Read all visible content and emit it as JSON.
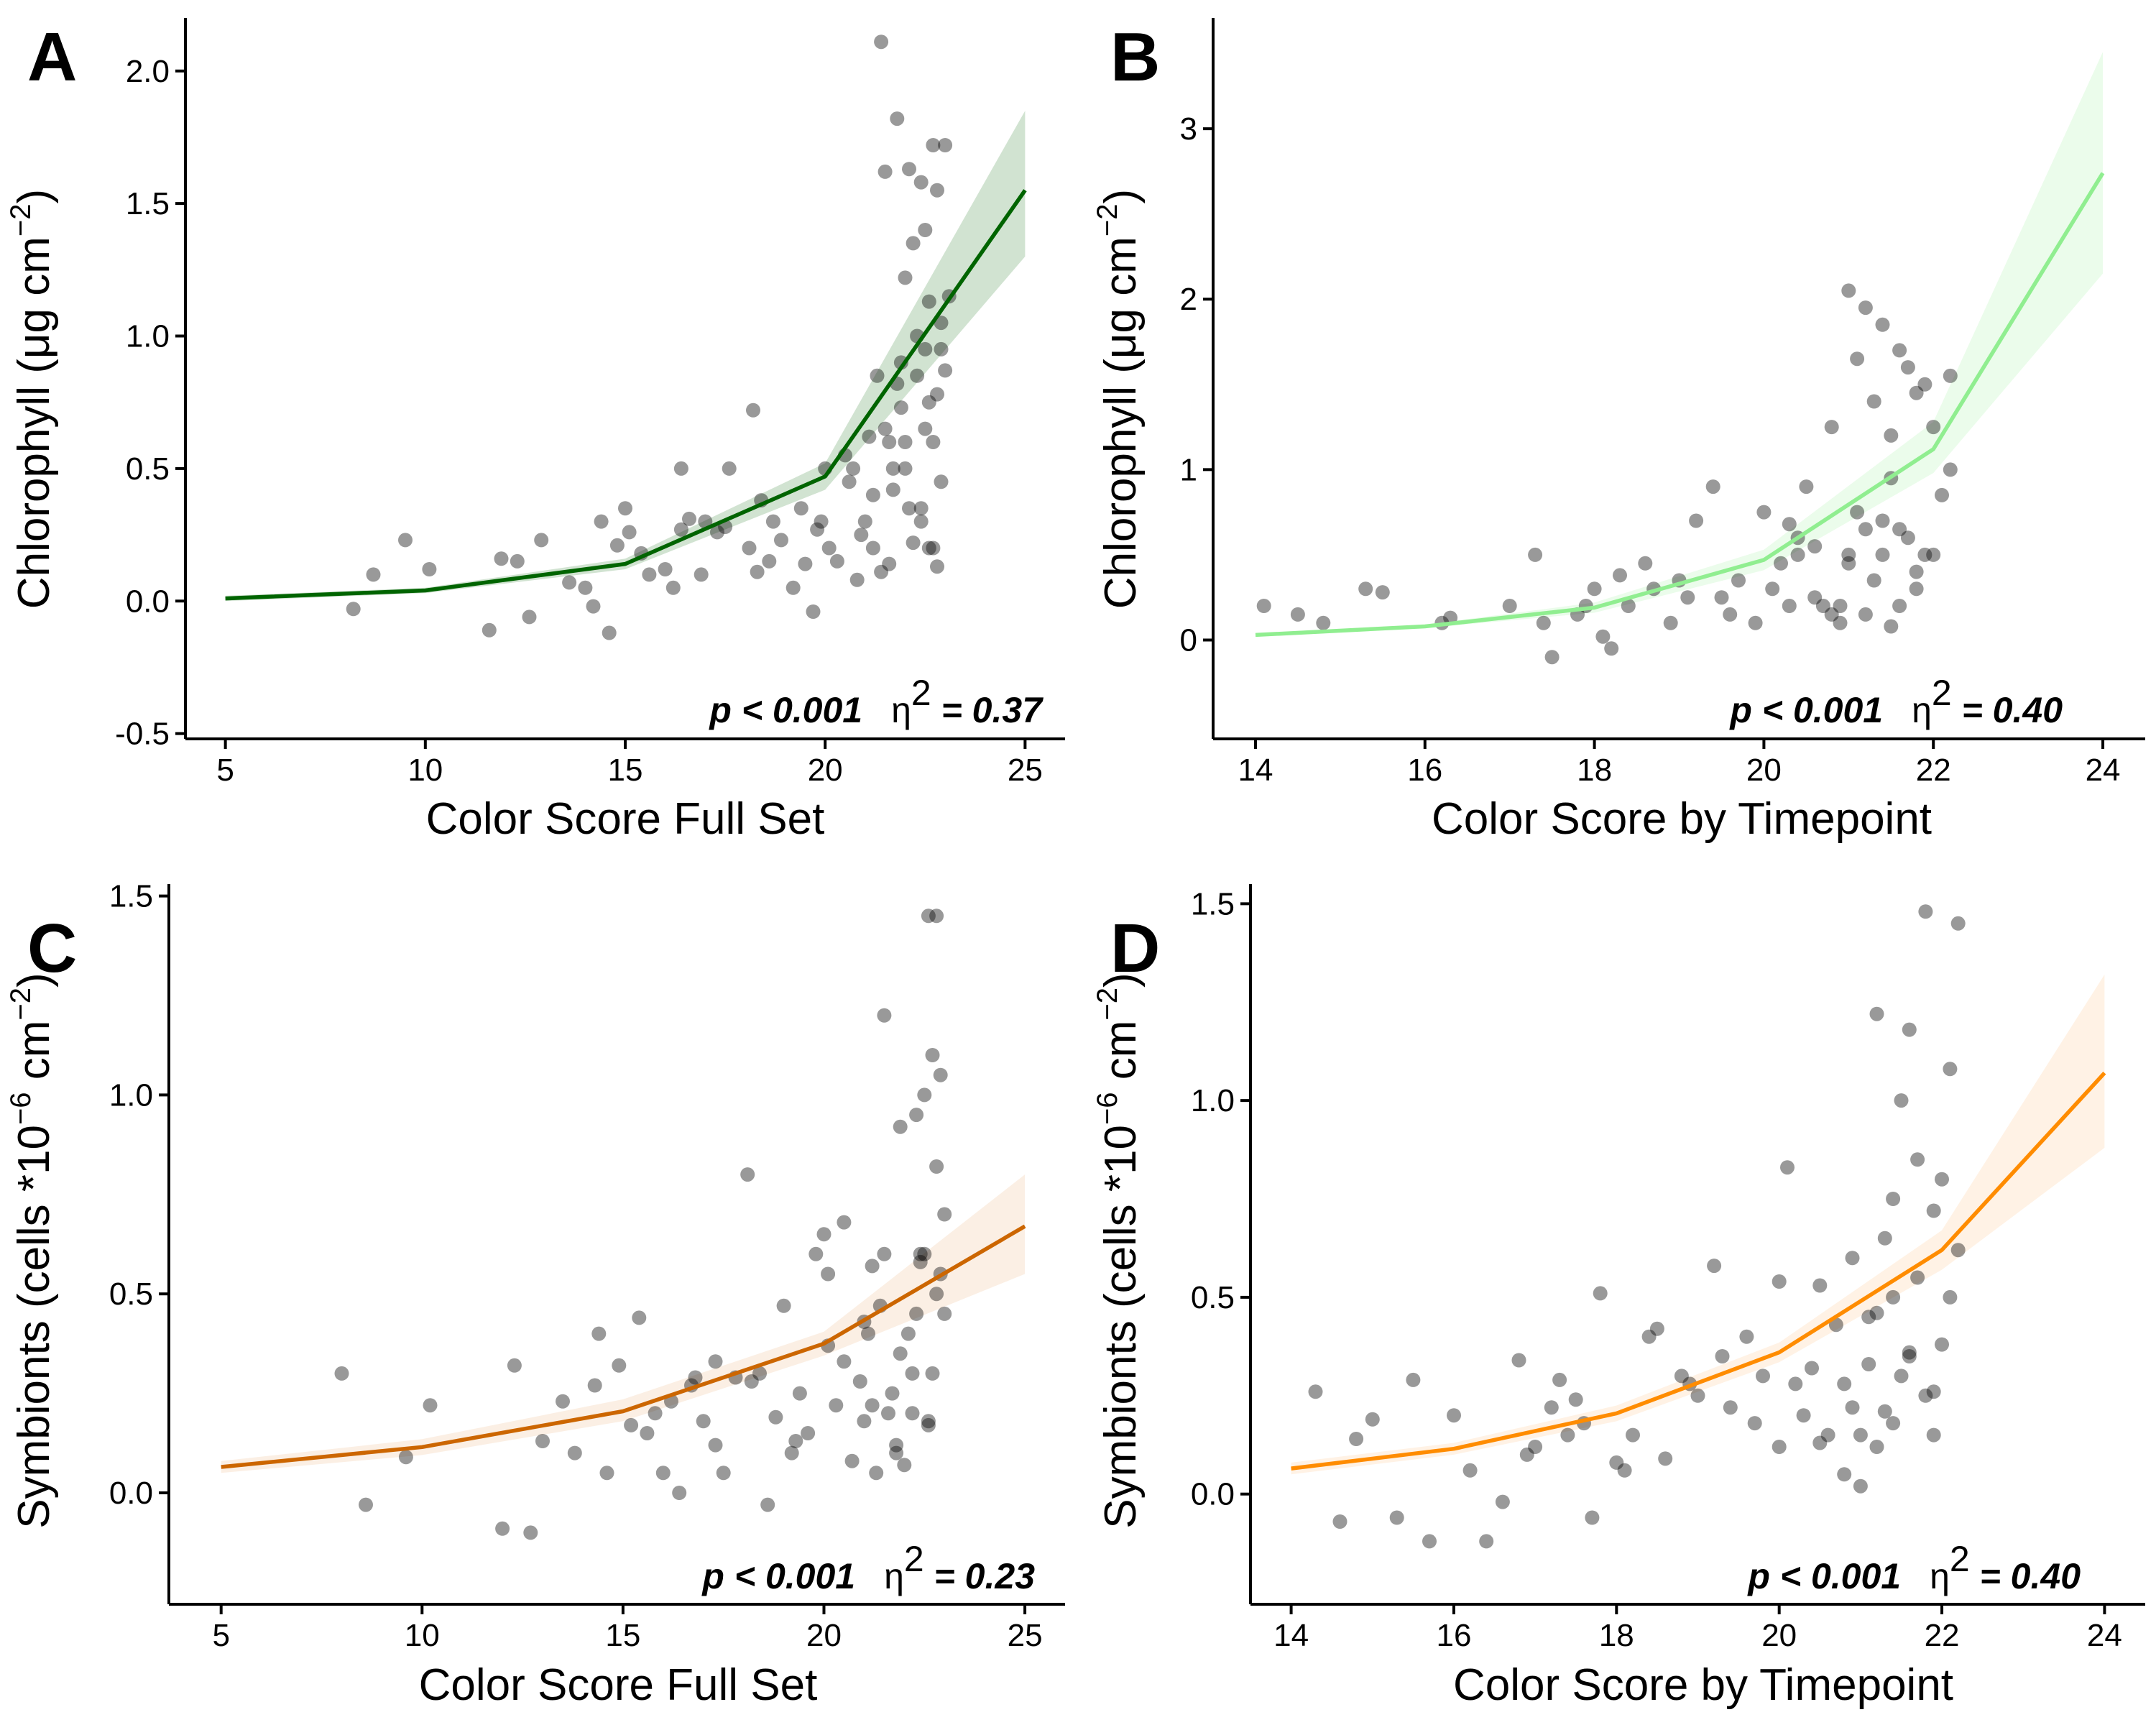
{
  "figure": {
    "panels": [
      {
        "letter": "A",
        "xlabel": "Color Score Full Set",
        "ylabel": "Chlorophyll (μg cm",
        "ylabel_sup": "−2",
        "ylabel_tail": ")",
        "p_text": "p < 0.001",
        "eta_text": "η",
        "eta_sup": "2",
        "eta_val": " = 0.37"
      },
      {
        "letter": "B",
        "xlabel": "Color Score by Timepoint",
        "ylabel": "Chlorophyll (μg cm",
        "ylabel_sup": "−2",
        "ylabel_tail": ")",
        "p_text": "p < 0.001",
        "eta_text": "η",
        "eta_sup": "2",
        "eta_val": " = 0.40"
      },
      {
        "letter": "C",
        "xlabel": "Color Score Full Set",
        "ylabel": "Symbionts (cells *10",
        "ylabel_sup": "−6",
        "ylabel_mid": " cm",
        "ylabel_sup2": "−2",
        "ylabel_tail": ")",
        "p_text": "p < 0.001",
        "eta_text": "η",
        "eta_sup": "2",
        "eta_val": " = 0.23"
      },
      {
        "letter": "D",
        "xlabel": "Color Score by Timepoint",
        "ylabel": "Symbionts (cells *10",
        "ylabel_sup": "−6",
        "ylabel_mid": " cm",
        "ylabel_sup2": "−2",
        "ylabel_tail": ")",
        "p_text": "p < 0.001",
        "eta_text": "η",
        "eta_sup": "2",
        "eta_val": " = 0.40"
      }
    ]
  },
  "chart_data": [
    {
      "type": "scatter",
      "panel": "A",
      "xlabel": "Color Score Full Set",
      "ylabel": "Chlorophyll (μg cm−2)",
      "xlim": [
        4,
        26
      ],
      "ylim": [
        -0.52,
        2.2
      ],
      "xticks": [
        5,
        10,
        15,
        20,
        25
      ],
      "yticks": [
        -0.5,
        0.0,
        0.5,
        1.0,
        1.5,
        2.0
      ],
      "ytick_labels": [
        "-0.5",
        "0.0",
        "0.5",
        "1.0",
        "1.5",
        "2.0"
      ],
      "fit_color": "#006400",
      "ribbon_color": "#006400",
      "fit_line": {
        "x": [
          5,
          10,
          15,
          20,
          25
        ],
        "y": [
          0.01,
          0.04,
          0.14,
          0.47,
          1.55
        ],
        "lower": [
          0.0,
          0.03,
          0.12,
          0.42,
          1.3
        ],
        "upper": [
          0.02,
          0.05,
          0.16,
          0.52,
          1.85
        ]
      },
      "points": {
        "x": [
          8.2,
          8.7,
          9.5,
          10.1,
          11.6,
          11.9,
          12.3,
          12.6,
          12.9,
          13.6,
          14.0,
          14.2,
          14.4,
          14.6,
          14.8,
          15.0,
          15.1,
          15.4,
          15.6,
          16.0,
          16.2,
          16.4,
          16.6,
          16.9,
          17.3,
          17.5,
          17.6,
          18.1,
          18.3,
          18.4,
          18.6,
          18.7,
          18.9,
          19.2,
          19.4,
          19.5,
          19.7,
          19.9,
          20.0,
          20.1,
          20.3,
          20.5,
          20.7,
          20.8,
          20.9,
          21.0,
          21.1,
          21.2,
          21.3,
          21.4,
          21.5,
          21.6,
          21.7,
          21.8,
          21.9,
          22.0,
          22.1,
          22.2,
          22.3,
          22.4,
          22.5,
          22.6,
          22.7,
          22.8,
          22.9,
          23.0,
          21.4,
          21.8,
          22.1,
          22.4,
          22.7,
          23.0,
          22.2,
          22.5,
          22.8,
          21.5,
          22.0,
          22.6,
          21.9,
          22.3,
          22.9,
          21.2,
          21.7,
          22.8,
          22.5,
          22.7,
          23.1,
          22.6,
          22.9,
          22.4,
          21.6,
          20.6,
          22.0,
          18.2,
          17.0,
          19.8,
          16.4
        ],
        "y": [
          -0.03,
          0.1,
          0.23,
          0.12,
          -0.11,
          0.16,
          0.15,
          -0.06,
          0.23,
          0.07,
          0.05,
          -0.02,
          0.3,
          -0.12,
          0.21,
          0.35,
          0.26,
          0.18,
          0.1,
          0.12,
          0.05,
          0.27,
          0.31,
          0.1,
          0.26,
          0.28,
          0.5,
          0.2,
          0.11,
          0.38,
          0.15,
          0.3,
          0.23,
          0.05,
          0.35,
          0.14,
          -0.04,
          0.3,
          0.5,
          0.2,
          0.15,
          0.55,
          0.5,
          0.08,
          0.25,
          0.3,
          0.62,
          0.2,
          0.85,
          0.11,
          0.65,
          0.14,
          0.5,
          0.82,
          0.73,
          0.5,
          0.35,
          0.22,
          0.85,
          0.3,
          0.65,
          0.75,
          0.2,
          0.13,
          0.95,
          0.87,
          2.11,
          1.82,
          1.63,
          1.58,
          1.72,
          1.72,
          1.35,
          1.4,
          1.55,
          1.62,
          1.22,
          1.13,
          0.9,
          1.0,
          1.05,
          0.4,
          0.42,
          0.78,
          0.95,
          0.6,
          1.15,
          0.2,
          0.45,
          0.35,
          0.6,
          0.45,
          0.6,
          0.72,
          0.3,
          0.27,
          0.5
        ]
      }
    },
    {
      "type": "scatter",
      "panel": "B",
      "xlabel": "Color Score by Timepoint",
      "ylabel": "Chlorophyll (μg cm−2)",
      "xlim": [
        13.5,
        24.5
      ],
      "ylim": [
        -0.58,
        3.65
      ],
      "xticks": [
        14,
        16,
        18,
        20,
        22,
        24
      ],
      "yticks": [
        0,
        1,
        2,
        3
      ],
      "ytick_labels": [
        "0",
        "1",
        "2",
        "3"
      ],
      "fit_color": "#90EE90",
      "ribbon_color": "#90EE90",
      "fit_line": {
        "x": [
          14,
          16,
          18,
          20,
          22,
          24
        ],
        "y": [
          0.03,
          0.08,
          0.19,
          0.47,
          1.12,
          2.74
        ],
        "lower": [
          0.02,
          0.07,
          0.16,
          0.41,
          0.98,
          2.15
        ],
        "upper": [
          0.04,
          0.09,
          0.22,
          0.53,
          1.28,
          3.45
        ]
      },
      "points": {
        "x": [
          14.1,
          14.5,
          14.8,
          15.3,
          15.5,
          16.2,
          16.3,
          17.0,
          17.3,
          17.4,
          17.5,
          17.8,
          18.0,
          18.1,
          18.2,
          18.4,
          18.6,
          18.9,
          19.0,
          19.2,
          19.4,
          19.5,
          19.7,
          19.9,
          20.0,
          20.1,
          20.2,
          20.3,
          20.4,
          20.5,
          20.6,
          20.7,
          20.8,
          20.9,
          21.0,
          21.1,
          21.2,
          21.3,
          21.4,
          21.5,
          21.6,
          21.7,
          21.8,
          21.9,
          22.0,
          22.1,
          22.2,
          21.0,
          21.2,
          21.4,
          21.6,
          21.3,
          21.5,
          21.8,
          22.0,
          21.1,
          21.7,
          21.9,
          20.8,
          20.4,
          21.5,
          21.2,
          22.2,
          21.0,
          21.6,
          20.6,
          17.9,
          18.3,
          18.7,
          19.1,
          19.6,
          20.9,
          20.3,
          21.4,
          21.8
        ],
        "y": [
          0.2,
          0.15,
          0.1,
          0.3,
          0.28,
          0.1,
          0.13,
          0.2,
          0.5,
          0.1,
          -0.1,
          0.15,
          0.3,
          0.02,
          -0.05,
          0.2,
          0.45,
          0.1,
          0.35,
          0.7,
          0.9,
          0.25,
          0.35,
          0.1,
          0.75,
          0.3,
          0.45,
          0.2,
          0.5,
          0.9,
          0.25,
          0.2,
          0.15,
          0.2,
          0.5,
          0.75,
          0.65,
          0.35,
          0.5,
          0.95,
          0.2,
          0.6,
          0.4,
          0.5,
          0.5,
          0.85,
          1.0,
          2.05,
          1.95,
          1.85,
          1.7,
          1.4,
          1.2,
          1.45,
          1.25,
          1.65,
          1.6,
          1.5,
          1.25,
          0.6,
          0.08,
          0.15,
          1.55,
          0.45,
          0.65,
          0.55,
          0.2,
          0.38,
          0.3,
          0.25,
          0.15,
          0.1,
          0.68,
          0.7,
          0.3
        ]
      }
    },
    {
      "type": "scatter",
      "panel": "C",
      "xlabel": "Color Score Full Set",
      "ylabel": "Symbionts (cells *10−6 cm−2)",
      "xlim": [
        3.7,
        26
      ],
      "ylim": [
        -0.28,
        1.53
      ],
      "xticks": [
        5,
        10,
        15,
        20,
        25
      ],
      "yticks": [
        0.0,
        0.5,
        1.0,
        1.5
      ],
      "ytick_labels": [
        "0.0",
        "0.5",
        "1.0",
        "1.5"
      ],
      "fit_color": "#CC6600",
      "ribbon_color": "#E8A46A",
      "fit_line": {
        "x": [
          5,
          10,
          15,
          20,
          25
        ],
        "y": [
          0.065,
          0.115,
          0.205,
          0.375,
          0.67
        ],
        "lower": [
          0.05,
          0.095,
          0.18,
          0.345,
          0.55
        ],
        "upper": [
          0.08,
          0.135,
          0.235,
          0.405,
          0.8
        ]
      },
      "points": {
        "x": [
          8.0,
          8.6,
          9.6,
          10.2,
          12.0,
          12.3,
          12.7,
          13.0,
          13.5,
          13.8,
          14.3,
          14.4,
          14.6,
          14.9,
          15.2,
          15.4,
          15.6,
          16.0,
          16.2,
          16.4,
          16.7,
          17.0,
          17.3,
          17.5,
          17.8,
          18.1,
          18.4,
          18.6,
          18.8,
          19.0,
          19.2,
          19.4,
          19.6,
          19.8,
          20.0,
          20.1,
          20.3,
          20.5,
          20.7,
          20.9,
          21.0,
          21.1,
          21.2,
          21.3,
          21.4,
          21.5,
          21.6,
          21.7,
          21.8,
          21.9,
          22.0,
          22.1,
          22.2,
          22.3,
          22.4,
          22.5,
          22.6,
          22.7,
          22.8,
          22.9,
          23.0,
          22.8,
          22.6,
          22.9,
          22.5,
          22.7,
          21.5,
          22.3,
          20.5,
          18.2,
          19.3,
          21.9,
          22.8,
          23.0,
          22.4,
          21.0,
          17.3,
          16.8,
          15.8,
          20.1,
          21.8,
          22.6,
          22.2,
          21.2
        ],
        "y": [
          0.3,
          -0.03,
          0.09,
          0.22,
          -0.09,
          0.32,
          -0.1,
          0.13,
          0.23,
          0.1,
          0.27,
          0.4,
          0.05,
          0.32,
          0.17,
          0.44,
          0.15,
          0.05,
          0.23,
          0.0,
          0.27,
          0.18,
          0.12,
          0.05,
          0.29,
          0.8,
          0.3,
          -0.03,
          0.19,
          0.47,
          0.1,
          0.25,
          0.15,
          0.6,
          0.65,
          0.37,
          0.22,
          0.33,
          0.08,
          0.28,
          0.18,
          0.4,
          0.57,
          0.05,
          0.47,
          0.6,
          0.2,
          0.25,
          0.1,
          0.35,
          0.07,
          0.4,
          0.2,
          0.45,
          0.58,
          0.6,
          0.17,
          0.3,
          0.5,
          0.55,
          0.45,
          1.45,
          1.45,
          1.05,
          1.0,
          1.1,
          1.2,
          0.95,
          0.68,
          0.28,
          0.13,
          0.92,
          0.82,
          0.7,
          0.6,
          0.43,
          0.33,
          0.29,
          0.2,
          0.55,
          0.12,
          0.18,
          0.3,
          0.22
        ]
      }
    },
    {
      "type": "scatter",
      "panel": "D",
      "xlabel": "Color Score by Timepoint",
      "ylabel": "Symbionts (cells *10−6 cm−2)",
      "xlim": [
        13.5,
        24.5
      ],
      "ylim": [
        -0.28,
        1.55
      ],
      "xticks": [
        14,
        16,
        18,
        20,
        22,
        24
      ],
      "yticks": [
        0.0,
        0.5,
        1.0,
        1.5
      ],
      "ytick_labels": [
        "0.0",
        "0.5",
        "1.0",
        "1.5"
      ],
      "fit_color": "#FF8C00",
      "ribbon_color": "#FFB870",
      "fit_line": {
        "x": [
          14,
          16,
          18,
          20,
          22,
          24
        ],
        "y": [
          0.065,
          0.115,
          0.205,
          0.36,
          0.62,
          1.07
        ],
        "lower": [
          0.05,
          0.1,
          0.185,
          0.335,
          0.57,
          0.88
        ],
        "upper": [
          0.08,
          0.13,
          0.225,
          0.385,
          0.67,
          1.32
        ]
      },
      "points": {
        "x": [
          14.3,
          14.6,
          14.8,
          15.0,
          15.3,
          15.5,
          15.7,
          16.0,
          16.2,
          16.4,
          16.6,
          16.8,
          17.0,
          17.3,
          17.4,
          17.6,
          17.7,
          17.8,
          18.0,
          18.1,
          18.2,
          18.4,
          18.6,
          18.8,
          19.0,
          19.2,
          19.4,
          19.6,
          19.8,
          20.0,
          20.1,
          20.2,
          20.3,
          20.4,
          20.5,
          20.6,
          20.7,
          20.8,
          20.9,
          21.0,
          21.1,
          21.2,
          21.3,
          21.4,
          21.5,
          21.6,
          21.7,
          21.8,
          21.9,
          22.0,
          22.1,
          22.2,
          21.2,
          21.5,
          21.7,
          21.9,
          22.0,
          21.4,
          21.6,
          21.3,
          20.9,
          21.1,
          21.8,
          22.2,
          21.0,
          20.5,
          19.3,
          18.5,
          17.5,
          20.0,
          21.6,
          22.1,
          21.2,
          20.8,
          19.7,
          18.9,
          17.2,
          16.9,
          21.4,
          21.9
        ],
        "y": [
          0.26,
          -0.07,
          0.14,
          0.19,
          -0.06,
          0.29,
          -0.12,
          0.2,
          0.06,
          -0.12,
          -0.02,
          0.34,
          0.12,
          0.29,
          0.15,
          0.18,
          -0.06,
          0.51,
          0.08,
          0.06,
          0.15,
          0.4,
          0.09,
          0.3,
          0.25,
          0.58,
          0.22,
          0.4,
          0.3,
          0.12,
          0.83,
          0.28,
          0.2,
          0.32,
          0.13,
          0.15,
          0.43,
          0.28,
          0.22,
          0.15,
          0.33,
          0.46,
          0.21,
          0.75,
          0.3,
          0.36,
          0.55,
          0.25,
          0.15,
          0.38,
          0.5,
          0.62,
          1.22,
          1.0,
          0.85,
          0.72,
          0.8,
          0.5,
          0.35,
          0.65,
          0.6,
          0.45,
          1.48,
          1.45,
          0.02,
          0.53,
          0.35,
          0.42,
          0.24,
          0.54,
          1.18,
          1.08,
          0.12,
          0.05,
          0.18,
          0.28,
          0.22,
          0.1,
          0.18,
          0.26
        ]
      }
    }
  ]
}
